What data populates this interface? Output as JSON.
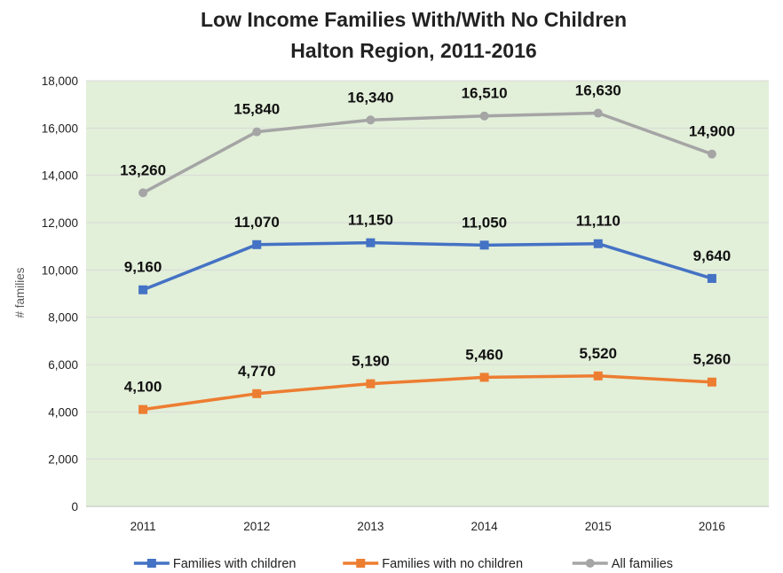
{
  "chart_data": {
    "type": "line",
    "title": [
      "Low Income Families With/With No Children",
      "Halton Region, 2011-2016"
    ],
    "ylabel": "# families",
    "xlabel": "",
    "categories": [
      "2011",
      "2012",
      "2013",
      "2014",
      "2015",
      "2016"
    ],
    "ylim": [
      0,
      18000
    ],
    "yticks": [
      0,
      2000,
      4000,
      6000,
      8000,
      10000,
      12000,
      14000,
      16000,
      18000
    ],
    "ytick_labels": [
      "0",
      "2,000",
      "4,000",
      "6,000",
      "8,000",
      "10,000",
      "12,000",
      "14,000",
      "16,000",
      "18,000"
    ],
    "plot_background": "#e2efd9",
    "grid": "horizontal",
    "legend_position": "bottom",
    "series": [
      {
        "name": "Families with children",
        "color": "#4472c4",
        "marker": "square",
        "values": [
          9160,
          11070,
          11150,
          11050,
          11110,
          9640
        ],
        "labels": [
          "9,160",
          "11,070",
          "11,150",
          "11,050",
          "11,110",
          "9,640"
        ]
      },
      {
        "name": "Families with no children",
        "color": "#ed7d31",
        "marker": "square",
        "values": [
          4100,
          4770,
          5190,
          5460,
          5520,
          5260
        ],
        "labels": [
          "4,100",
          "4,770",
          "5,190",
          "5,460",
          "5,520",
          "5,260"
        ]
      },
      {
        "name": "All families",
        "color": "#a5a5a5",
        "marker": "circle",
        "values": [
          13260,
          15840,
          16340,
          16510,
          16630,
          14900
        ],
        "labels": [
          "13,260",
          "15,840",
          "16,340",
          "16,510",
          "16,630",
          "14,900"
        ]
      }
    ]
  }
}
